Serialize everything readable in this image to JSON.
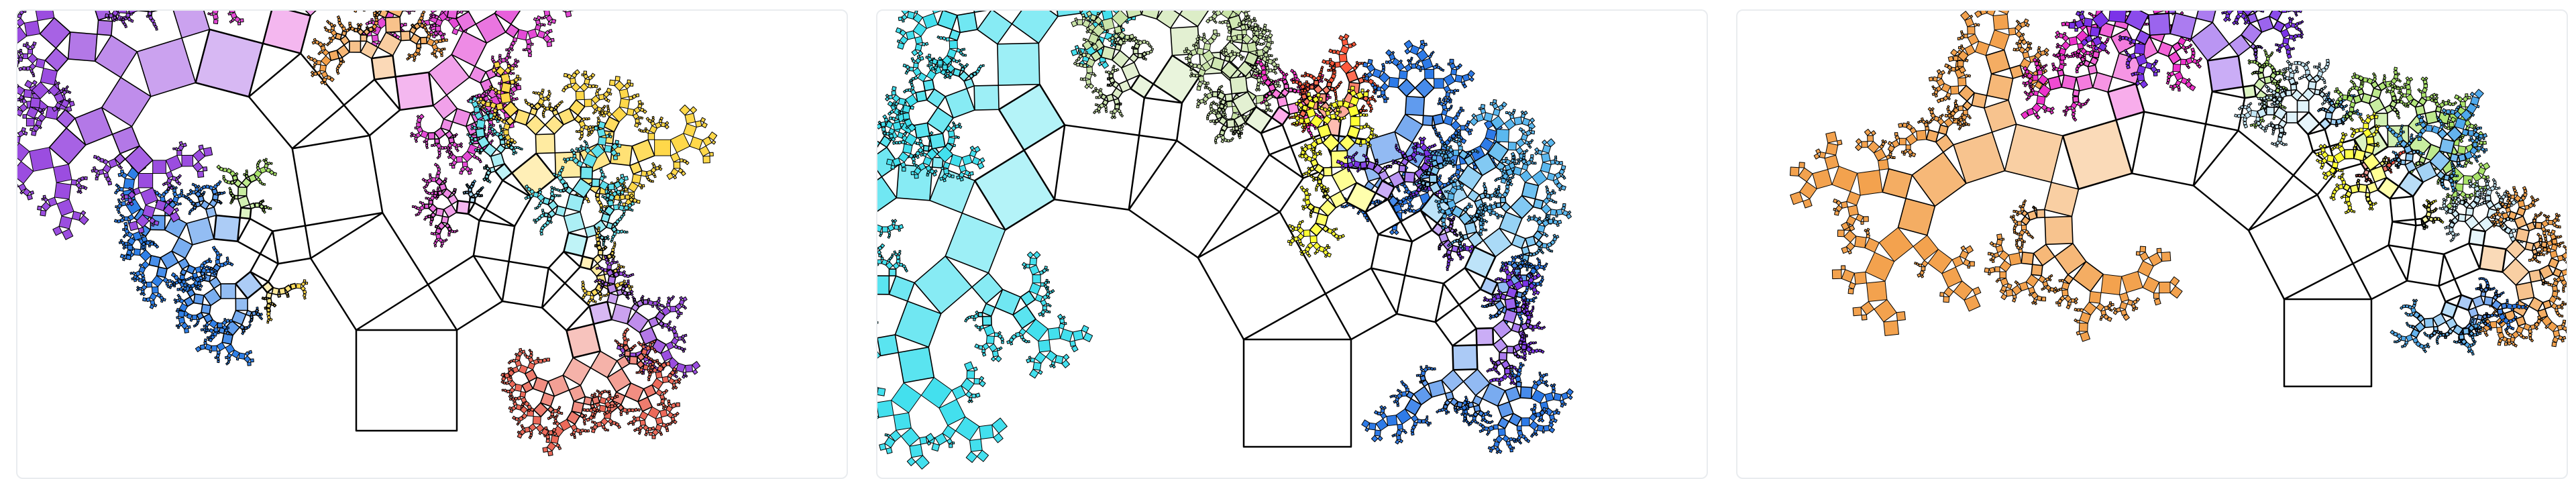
{
  "page": {
    "background": "#ffffff",
    "card_border": "#e9ecef"
  },
  "panels": [
    {
      "id": "tree-1",
      "palette": [
        "#ffd84a",
        "#5bb8ef",
        "#9b4de0",
        "#5fe0ec",
        "#a9e36a",
        "#ec6a5a",
        "#f4a04a",
        "#e44ad6",
        "#2f80e8",
        "#f6c9a8"
      ]
    },
    {
      "id": "tree-2",
      "palette": [
        "#ff5a3c",
        "#f3a24e",
        "#ffff33",
        "#43e0ee",
        "#88e64a",
        "#7b33e8",
        "#5bb8ef",
        "#2e7be8",
        "#ff33cc",
        "#c9e3a8"
      ]
    },
    {
      "id": "tree-3",
      "palette": [
        "#f3a24e",
        "#e84a3c",
        "#ffff33",
        "#4fd6f0",
        "#4fa9ec",
        "#7b33e8",
        "#a9e36a",
        "#ee33cc",
        "#2e7be8",
        "#c4e7f6"
      ]
    }
  ]
}
